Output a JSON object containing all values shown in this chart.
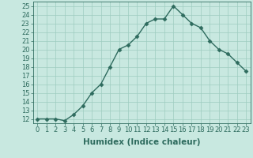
{
  "x": [
    0,
    1,
    2,
    3,
    4,
    5,
    6,
    7,
    8,
    9,
    10,
    11,
    12,
    13,
    14,
    15,
    16,
    17,
    18,
    19,
    20,
    21,
    22,
    23
  ],
  "y": [
    12,
    12,
    12,
    11.8,
    12.5,
    13.5,
    15,
    16,
    18,
    20,
    20.5,
    21.5,
    23,
    23.5,
    23.5,
    25,
    24,
    23,
    22.5,
    21,
    20,
    19.5,
    18.5,
    17.5
  ],
  "line_color": "#2e6b5e",
  "marker": "D",
  "marker_size": 2.5,
  "bg_color": "#c8e8e0",
  "grid_color": "#9eccc0",
  "xlabel": "Humidex (Indice chaleur)",
  "xlim": [
    -0.5,
    23.5
  ],
  "ylim": [
    11.5,
    25.5
  ],
  "yticks": [
    12,
    13,
    14,
    15,
    16,
    17,
    18,
    19,
    20,
    21,
    22,
    23,
    24,
    25
  ],
  "xticks": [
    0,
    1,
    2,
    3,
    4,
    5,
    6,
    7,
    8,
    9,
    10,
    11,
    12,
    13,
    14,
    15,
    16,
    17,
    18,
    19,
    20,
    21,
    22,
    23
  ],
  "xlabel_fontsize": 7.5,
  "tick_fontsize": 6,
  "line_width": 1.0
}
